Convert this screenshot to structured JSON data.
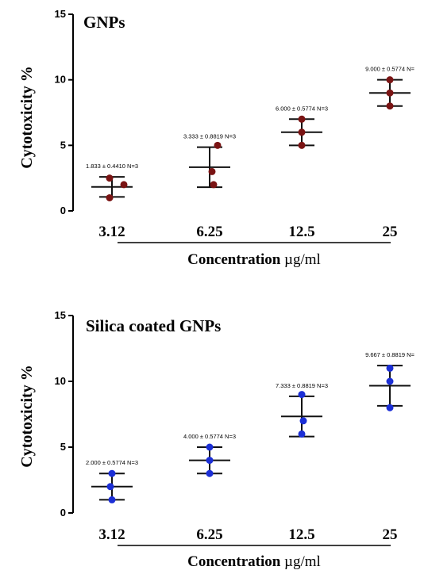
{
  "chart_data": [
    {
      "type": "scatter",
      "title": "GNPs",
      "ylabel": "Cytotoxicity %",
      "xlabel_bold": "Concentration",
      "xlabel_unit": "µg/ml",
      "categories": [
        "3.12",
        "6.25",
        "12.5",
        "25"
      ],
      "ylim": [
        0,
        15
      ],
      "yticks": [
        "0",
        "5",
        "10",
        "15"
      ],
      "point_color": "#7a1414",
      "series": [
        {
          "points": [
            [
              2.5,
              2.0,
              1.0
            ],
            [
              5.0,
              3.0,
              2.0
            ],
            [
              7.0,
              6.0,
              5.0
            ],
            [
              10.0,
              9.0,
              8.0
            ]
          ],
          "mean": [
            1.833,
            3.333,
            6.0,
            9.0
          ],
          "sem": [
            0.441,
            0.8819,
            0.5774,
            0.5774
          ],
          "labels": [
            "1.833 ± 0.4410 N=3",
            "3.333 ± 0.8819 N=3",
            "6.000 ± 0.5774 N=3",
            "9.000 ± 0.5774 N="
          ]
        }
      ]
    },
    {
      "type": "scatter",
      "title": "Silica coated GNPs",
      "ylabel": "Cytotoxicity %",
      "xlabel_bold": "Concentration",
      "xlabel_unit": "µg/ml",
      "categories": [
        "3.12",
        "6.25",
        "12.5",
        "25"
      ],
      "ylim": [
        0,
        15
      ],
      "yticks": [
        "0",
        "5",
        "10",
        "15"
      ],
      "point_color": "#1c2fd6",
      "series": [
        {
          "points": [
            [
              3.0,
              2.0,
              1.0
            ],
            [
              5.0,
              4.0,
              3.0
            ],
            [
              9.0,
              7.0,
              6.0
            ],
            [
              11.0,
              10.0,
              8.0
            ]
          ],
          "mean": [
            2.0,
            4.0,
            7.333,
            9.667
          ],
          "sem": [
            0.5774,
            0.5774,
            0.8819,
            0.8819
          ],
          "labels": [
            "2.000 ± 0.5774 N=3",
            "4.000 ± 0.5774 N=3",
            "7.333 ± 0.8819 N=3",
            "9.667 ± 0.8819 N="
          ]
        }
      ]
    }
  ]
}
